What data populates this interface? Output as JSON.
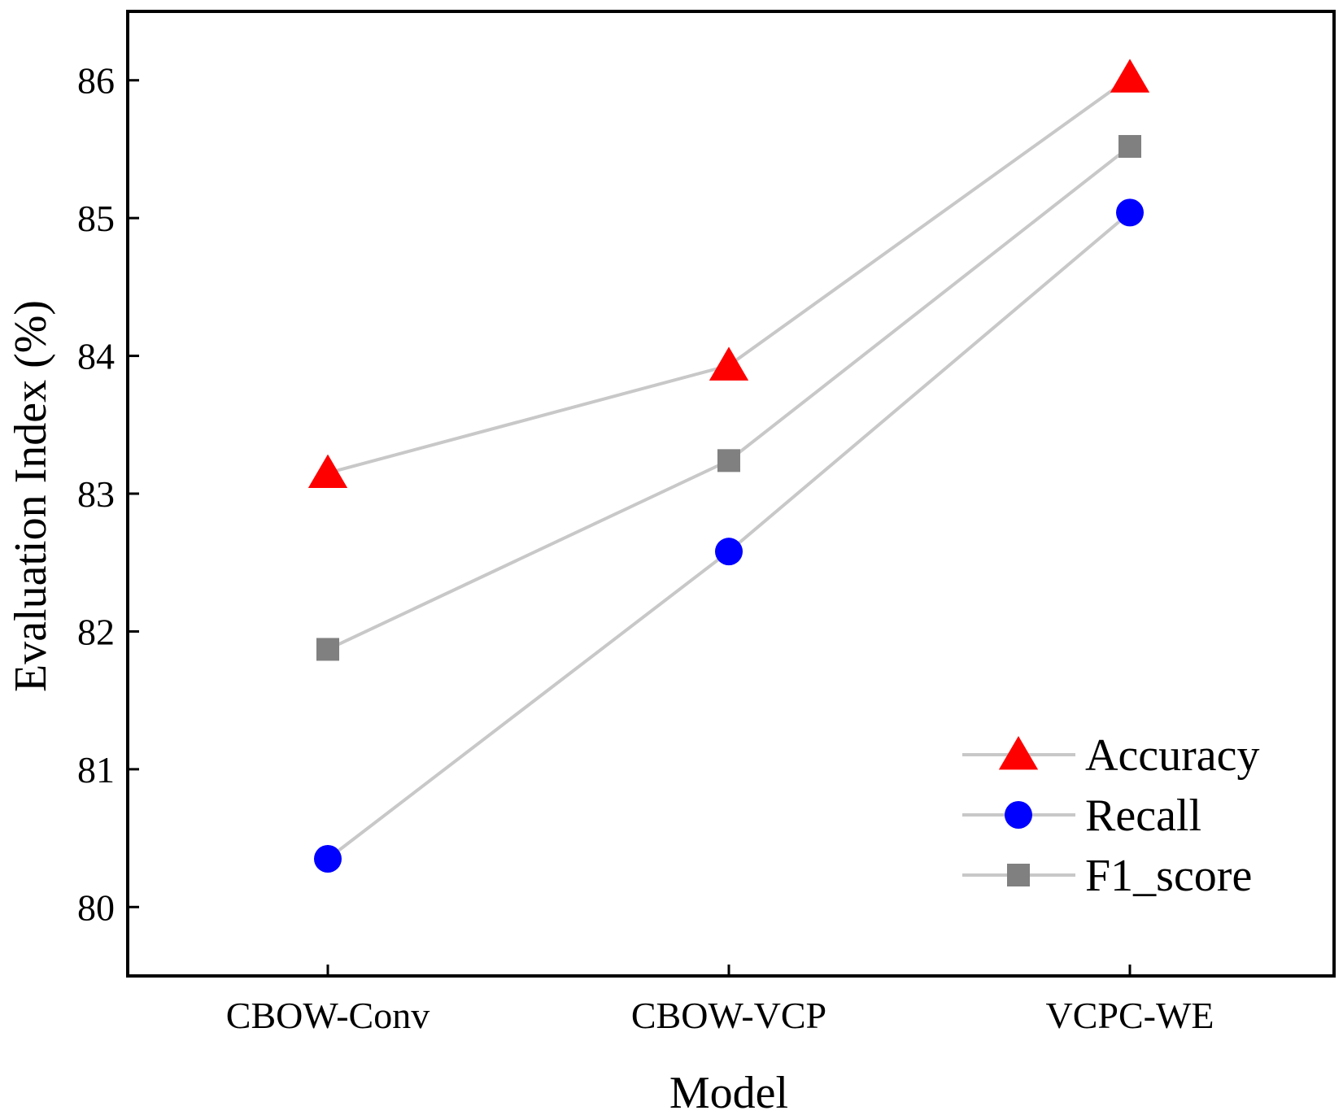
{
  "chart_data": {
    "type": "line",
    "title": "",
    "xlabel": "Model",
    "ylabel": "Evaluation Index (%)",
    "categories": [
      "CBOW-Conv",
      "CBOW-VCP",
      "VCPC-WE"
    ],
    "ylim": [
      79.5,
      86.5
    ],
    "yticks": [
      80,
      81,
      82,
      83,
      84,
      85,
      86
    ],
    "grid": false,
    "legend_position": "bottom-right",
    "series": [
      {
        "name": "Accuracy",
        "marker": "triangle",
        "color": "#ff0000",
        "values": [
          83.15,
          83.93,
          86.02
        ]
      },
      {
        "name": "Recall",
        "marker": "circle",
        "color": "#0000ff",
        "values": [
          80.35,
          82.58,
          85.04
        ]
      },
      {
        "name": "F1_score",
        "marker": "square",
        "color": "#808080",
        "values": [
          81.87,
          83.24,
          85.52
        ]
      }
    ],
    "line_color": "#c8c8c8"
  }
}
